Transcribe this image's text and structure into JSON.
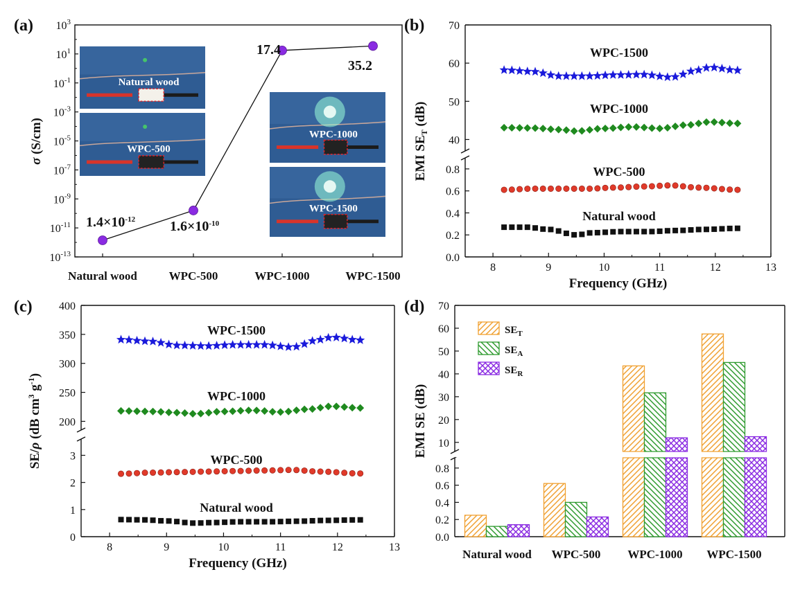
{
  "chart_data": [
    {
      "panel": "(a)",
      "type": "scatter",
      "ylabel": "σ (S/cm)",
      "yscale": "log",
      "ylim": [
        1e-13,
        1000
      ],
      "ytick_exponents": [
        "3",
        "1",
        "-1",
        "-3",
        "-5",
        "-7",
        "-9",
        "-11",
        "-13"
      ],
      "categories": [
        "Natural wood",
        "WPC-500",
        "WPC-1000",
        "WPC-1500"
      ],
      "values": [
        1.4e-12,
        1.6e-10,
        17.4,
        35.2
      ],
      "point_labels": [
        {
          "base": "1.4×10",
          "exp": "-12"
        },
        {
          "base": "1.6×10",
          "exp": "-10"
        },
        {
          "base": "17.4",
          "exp": ""
        },
        {
          "base": "35.2",
          "exp": ""
        }
      ],
      "photo_labels": [
        "Natural wood",
        "WPC-500",
        "WPC-1000",
        "WPC-1500"
      ],
      "colors": {
        "point": "#8a2be2",
        "photo_bg": "#2f5c93"
      }
    },
    {
      "panel": "(b)",
      "type": "line",
      "xlabel": "Frequency (GHz)",
      "ylabel_main": "EMI SE",
      "ylabel_sub": "T",
      "ylabel_unit": " (dB)",
      "xlim": [
        7.5,
        13
      ],
      "xticks": [
        "8",
        "9",
        "10",
        "11",
        "12",
        "13"
      ],
      "upper_axis": {
        "ylim": [
          37,
          70
        ],
        "ticks": [
          "40",
          "50",
          "60",
          "70"
        ]
      },
      "lower_axis": {
        "ylim": [
          0,
          0.9
        ],
        "ticks": [
          "0.0",
          "0.2",
          "0.4",
          "0.6",
          "0.8"
        ]
      },
      "series": [
        {
          "name": "WPC-1500",
          "marker": "star",
          "color": "#1a1adb",
          "axis": "upper",
          "x": [
            8.2,
            8.7,
            9.2,
            9.7,
            10.2,
            10.7,
            11.2,
            11.7,
            11.9,
            12.4
          ],
          "y": [
            58.2,
            57.8,
            56.6,
            56.6,
            56.9,
            57.0,
            56.3,
            58.2,
            58.9,
            58.1
          ]
        },
        {
          "name": "WPC-1000",
          "marker": "diamond",
          "color": "#1f8a1f",
          "axis": "upper",
          "x": [
            8.2,
            8.7,
            9.2,
            9.5,
            10.0,
            10.5,
            11.0,
            11.5,
            11.9,
            12.4
          ],
          "y": [
            43.1,
            43.0,
            42.6,
            42.2,
            42.9,
            43.3,
            42.9,
            43.8,
            44.6,
            44.2
          ]
        },
        {
          "name": "WPC-500",
          "marker": "circle",
          "color": "#e03a2a",
          "axis": "lower",
          "x": [
            8.2,
            8.7,
            9.2,
            9.7,
            10.2,
            10.7,
            11.2,
            11.7,
            12.4
          ],
          "y": [
            0.61,
            0.62,
            0.62,
            0.62,
            0.63,
            0.64,
            0.65,
            0.63,
            0.61
          ]
        },
        {
          "name": "Natural wood",
          "marker": "square",
          "color": "#111111",
          "axis": "lower",
          "x": [
            8.2,
            8.6,
            9.0,
            9.5,
            9.8,
            10.3,
            10.8,
            11.3,
            11.8,
            12.4
          ],
          "y": [
            0.27,
            0.27,
            0.25,
            0.2,
            0.22,
            0.23,
            0.23,
            0.24,
            0.25,
            0.26
          ]
        }
      ]
    },
    {
      "panel": "(c)",
      "type": "line",
      "xlabel": "Frequency (GHz)",
      "ylabel": "SE/ρ (dB cm3 g-1)",
      "ylabel_parts": [
        "SE/",
        "ρ",
        " (dB cm",
        "3",
        " g",
        "-1",
        ")"
      ],
      "xlim": [
        7.5,
        13
      ],
      "xticks": [
        "8",
        "9",
        "10",
        "11",
        "12",
        "13"
      ],
      "upper_axis": {
        "ylim": [
          185,
          400
        ],
        "ticks": [
          "200",
          "250",
          "300",
          "350",
          "400"
        ]
      },
      "lower_axis": {
        "ylim": [
          0,
          3.6
        ],
        "ticks": [
          "0",
          "1",
          "2",
          "3"
        ]
      },
      "series": [
        {
          "name": "WPC-1500",
          "marker": "star",
          "color": "#1a1adb",
          "axis": "upper",
          "x": [
            8.2,
            8.7,
            9.2,
            9.7,
            10.2,
            10.7,
            11.2,
            11.7,
            11.9,
            12.4
          ],
          "y": [
            341,
            338,
            331,
            330,
            332,
            332,
            328,
            341,
            345,
            340
          ]
        },
        {
          "name": "WPC-1000",
          "marker": "diamond",
          "color": "#1f8a1f",
          "axis": "upper",
          "x": [
            8.2,
            8.7,
            9.2,
            9.5,
            10.0,
            10.5,
            11.0,
            11.5,
            11.9,
            12.4
          ],
          "y": [
            218,
            217,
            215,
            213,
            217,
            219,
            216,
            221,
            226,
            223
          ]
        },
        {
          "name": "WPC-500",
          "marker": "circle",
          "color": "#e03a2a",
          "axis": "lower",
          "x": [
            8.2,
            8.7,
            9.2,
            9.7,
            10.2,
            10.7,
            11.2,
            11.7,
            12.4
          ],
          "y": [
            2.32,
            2.36,
            2.38,
            2.4,
            2.42,
            2.44,
            2.46,
            2.4,
            2.33
          ]
        },
        {
          "name": "Natural wood",
          "marker": "square",
          "color": "#111111",
          "axis": "lower",
          "x": [
            8.2,
            8.6,
            9.0,
            9.5,
            9.8,
            10.3,
            10.8,
            11.3,
            11.8,
            12.4
          ],
          "y": [
            0.63,
            0.62,
            0.58,
            0.5,
            0.52,
            0.55,
            0.55,
            0.57,
            0.6,
            0.62
          ]
        }
      ]
    },
    {
      "panel": "(d)",
      "type": "bar",
      "ylabel": "EMI SE (dB)",
      "categories": [
        "Natural wood",
        "WPC-500",
        "WPC-1000",
        "WPC-1500"
      ],
      "upper_axis": {
        "ylim": [
          6,
          70
        ],
        "ticks": [
          "10",
          "20",
          "30",
          "40",
          "50",
          "60",
          "70"
        ]
      },
      "lower_axis": {
        "ylim": [
          0,
          0.92
        ],
        "ticks": [
          "0.0",
          "0.2",
          "0.4",
          "0.6",
          "0.8"
        ]
      },
      "series": [
        {
          "name": "SE",
          "sub": "T",
          "color": "#f0a030",
          "hatch": "diagonal",
          "values": [
            0.25,
            0.62,
            43.5,
            57.5
          ]
        },
        {
          "name": "SE",
          "sub": "A",
          "color": "#2e9a2e",
          "hatch": "back-diagonal",
          "values": [
            0.12,
            0.4,
            31.7,
            45.0
          ]
        },
        {
          "name": "SE",
          "sub": "R",
          "color": "#8a2be2",
          "hatch": "cross",
          "values": [
            0.14,
            0.23,
            12.0,
            12.5
          ]
        }
      ]
    }
  ]
}
